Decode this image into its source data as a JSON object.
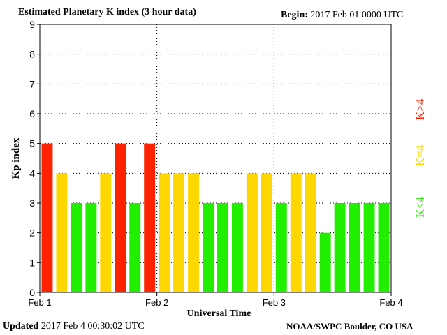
{
  "title": "Estimated Planetary K index (3 hour data)",
  "begin_label": "Begin:",
  "begin_value": "2017 Feb 01 0000 UTC",
  "updated_label": "Updated",
  "updated_value": "2017 Feb  4 00:30:02 UTC",
  "credit": "NOAA/SWPC Boulder, CO USA",
  "legend": {
    "high": {
      "label": "K>4",
      "color": "#ff2200"
    },
    "mid": {
      "label": "K=4",
      "color": "#ffd700"
    },
    "low": {
      "label": "K<4",
      "color": "#22ee00"
    }
  },
  "chart_data": {
    "type": "bar",
    "ylabel": "Kp index",
    "xlabel": "Universal Time",
    "ylim": [
      0,
      9
    ],
    "yticks": [
      "0",
      "1",
      "2",
      "3",
      "4",
      "5",
      "6",
      "7",
      "8",
      "9"
    ],
    "xticks": [
      "Feb 1",
      "Feb 2",
      "Feb 3",
      "Feb 4"
    ],
    "grid": true,
    "values": [
      5,
      4,
      3,
      3,
      4,
      5,
      3,
      5,
      4,
      4,
      4,
      3,
      3,
      3,
      4,
      4,
      3,
      4,
      4,
      2,
      3,
      3,
      3,
      3
    ]
  }
}
